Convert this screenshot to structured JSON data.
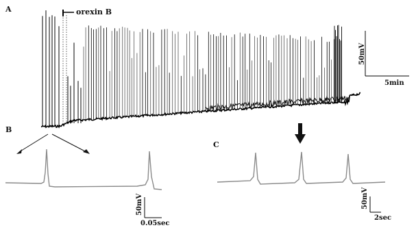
{
  "figure": {
    "panels": {
      "a": "A",
      "b": "B",
      "c": "C"
    },
    "drug_label": "orexin B",
    "scale_a": {
      "voltage": "50mV",
      "time": "5min"
    },
    "scale_b": {
      "voltage": "50mV",
      "time": "0.05sec"
    },
    "scale_c": {
      "voltage": "50mV",
      "time": "2sec"
    }
  },
  "colors": {
    "trace_main": "#000000",
    "trace_gray": "#8a8a8a",
    "arrow": "#111111"
  }
}
